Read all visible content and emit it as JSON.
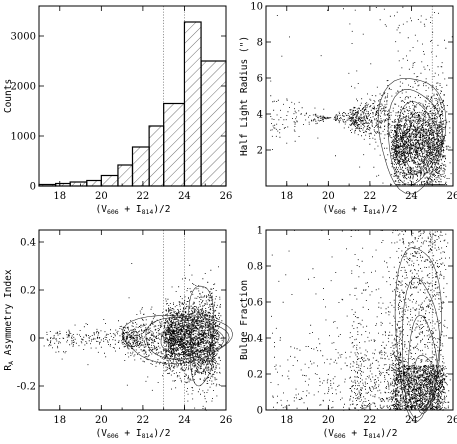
{
  "chart_data": [
    {
      "type": "bar",
      "name": "counts-histogram",
      "xlabel_pre": "(V",
      "xlabel_sub1": "606",
      "xlabel_mid": " + I",
      "xlabel_sub2": "814",
      "xlabel_post": ")/2",
      "ylabel": "Counts",
      "xlim": [
        17,
        26
      ],
      "ylim": [
        0,
        3600
      ],
      "xticks": [
        "18",
        "20",
        "22",
        "24",
        "26"
      ],
      "yticks": [
        "0",
        "1000",
        "2000",
        "3000"
      ],
      "bins": [
        {
          "x0": 17.0,
          "x1": 17.8,
          "value": 30
        },
        {
          "x0": 17.8,
          "x1": 18.5,
          "value": 50
        },
        {
          "x0": 18.5,
          "x1": 19.3,
          "value": 80
        },
        {
          "x0": 19.3,
          "x1": 20.0,
          "value": 110
        },
        {
          "x0": 20.0,
          "x1": 20.8,
          "value": 210
        },
        {
          "x0": 20.8,
          "x1": 21.5,
          "value": 420
        },
        {
          "x0": 21.5,
          "x1": 22.3,
          "value": 780
        },
        {
          "x0": 22.3,
          "x1": 23.0,
          "value": 1200
        },
        {
          "x0": 23.0,
          "x1": 24.0,
          "value": 1650
        },
        {
          "x0": 24.0,
          "x1": 24.8,
          "value": 3280
        },
        {
          "x0": 24.8,
          "x1": 26.0,
          "value": 2500
        }
      ],
      "vlines": [
        23.0,
        24.0
      ]
    },
    {
      "type": "scatter",
      "name": "half-light-radius",
      "xlabel_pre": "(V",
      "xlabel_sub1": "606",
      "xlabel_mid": " + I",
      "xlabel_sub2": "814",
      "xlabel_post": ")/2",
      "ylabel": "Half Light Radius (\")",
      "xlim": [
        17,
        26
      ],
      "ylim": [
        0,
        10
      ],
      "xticks": [
        "18",
        "20",
        "22",
        "24",
        "26"
      ],
      "yticks": [
        "2",
        "4",
        "6",
        "8",
        "10"
      ],
      "vlines": [
        25.0
      ]
    },
    {
      "type": "scatter",
      "name": "asymmetry-index",
      "xlabel_pre": "(V",
      "xlabel_sub1": "606",
      "xlabel_mid": " + I",
      "xlabel_sub2": "814",
      "xlabel_post": ")/2",
      "ylabel_pre": "R",
      "ylabel_sub": "A",
      "ylabel_post": " Asymmetry Index",
      "xlim": [
        17,
        26
      ],
      "ylim": [
        -0.3,
        0.45
      ],
      "xticks": [
        "18",
        "20",
        "22",
        "24",
        "26"
      ],
      "yticks": [
        "-0.2",
        "0",
        "0.2",
        "0.4"
      ],
      "vlines": [
        23.0,
        24.0
      ]
    },
    {
      "type": "scatter",
      "name": "bulge-fraction",
      "xlabel_pre": "(V",
      "xlabel_sub1": "606",
      "xlabel_mid": " + I",
      "xlabel_sub2": "814",
      "xlabel_post": ")/2",
      "ylabel": "Bulge Fraction",
      "xlim": [
        17,
        26
      ],
      "ylim": [
        0,
        1
      ],
      "xticks": [
        "18",
        "20",
        "22",
        "24",
        "26"
      ],
      "yticks": [
        "0",
        "0.2",
        "0.4",
        "0.6",
        "0.8",
        "1"
      ],
      "vlines": [
        25.0
      ]
    }
  ]
}
